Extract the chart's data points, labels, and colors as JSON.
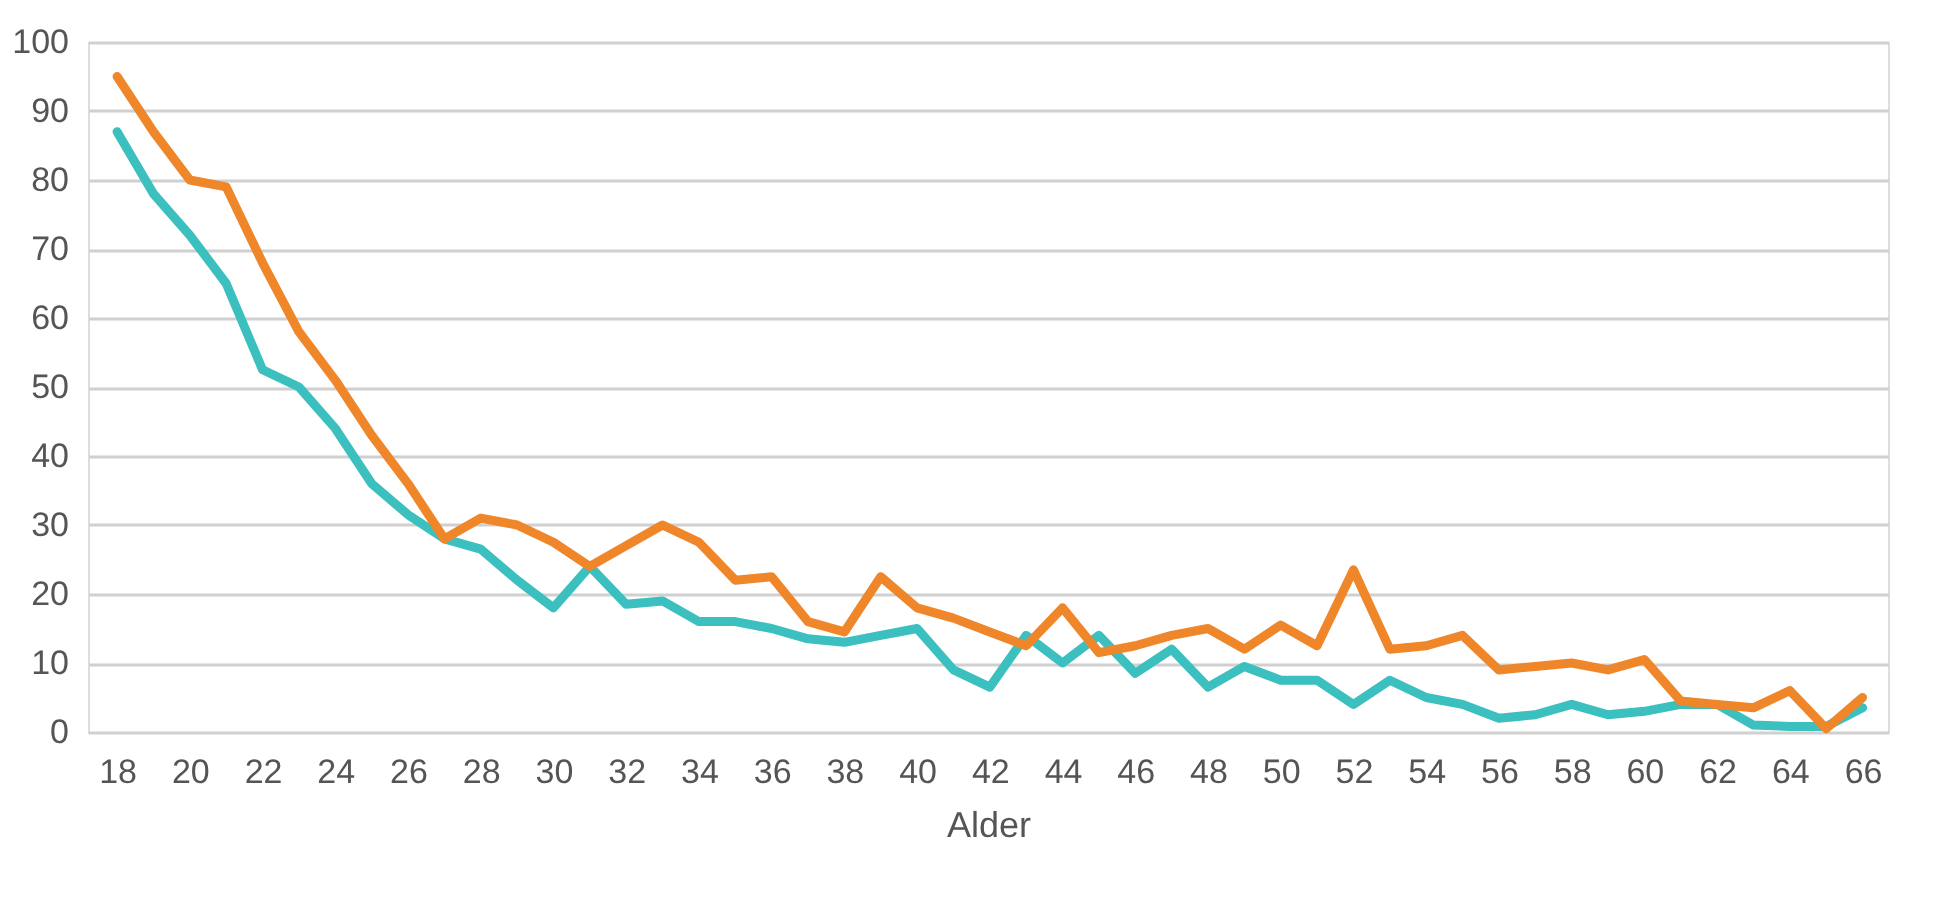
{
  "chart_data": {
    "type": "line",
    "xlabel": "Alder",
    "x": [
      18,
      19,
      20,
      21,
      22,
      23,
      24,
      25,
      26,
      27,
      28,
      29,
      30,
      31,
      32,
      33,
      34,
      35,
      36,
      37,
      38,
      39,
      40,
      41,
      42,
      43,
      44,
      45,
      46,
      47,
      48,
      49,
      50,
      51,
      52,
      53,
      54,
      55,
      56,
      57,
      58,
      59,
      60,
      61,
      62,
      63,
      64,
      65,
      66
    ],
    "series": [
      {
        "color": "#3bbfbf",
        "values": [
          87,
          78,
          72,
          65,
          52.5,
          50,
          44,
          36,
          31.5,
          28,
          26.5,
          22,
          18,
          24,
          18.5,
          19,
          16,
          16,
          15,
          13.5,
          13,
          14,
          15,
          9,
          6.5,
          14,
          10,
          14,
          8.5,
          12,
          6.5,
          9.5,
          7.5,
          7.5,
          4,
          7.5,
          5,
          4,
          2,
          2.5,
          4,
          2.5,
          3,
          4,
          4,
          1,
          0.8,
          0.8,
          3.5
        ]
      },
      {
        "color": "#f0862a",
        "values": [
          95,
          87,
          80,
          79,
          68,
          58,
          51,
          43,
          36,
          28,
          31,
          30,
          27.5,
          24,
          27,
          30,
          27.5,
          22,
          22.5,
          16,
          14.5,
          22.5,
          18,
          16.5,
          14.5,
          12.5,
          18,
          11.5,
          12.5,
          14,
          15,
          12,
          15.5,
          12.5,
          23.5,
          12,
          12.5,
          14,
          9,
          9.5,
          10,
          9,
          10.5,
          4.5,
          4,
          3.5,
          6,
          0.5,
          5
        ]
      }
    ],
    "xlim": [
      17.2,
      66.7
    ],
    "xticks": [
      18,
      20,
      22,
      24,
      26,
      28,
      30,
      32,
      34,
      36,
      38,
      40,
      42,
      44,
      46,
      48,
      50,
      52,
      54,
      56,
      58,
      60,
      62,
      64,
      66
    ],
    "ylim": [
      0,
      100
    ],
    "yticks": [
      0,
      10,
      20,
      30,
      40,
      50,
      60,
      70,
      80,
      90,
      100
    ],
    "grid": "y",
    "marker": "none",
    "line_style": "solid"
  }
}
